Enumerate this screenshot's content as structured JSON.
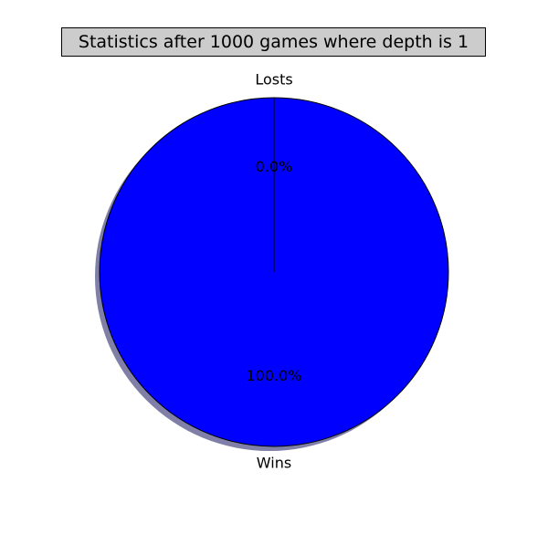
{
  "chart_data": {
    "type": "pie",
    "title": "Statistics after 1000 games where depth is 1",
    "slices": [
      {
        "label": "Wins",
        "value": 100.0,
        "pct_label": "100.0%",
        "color": "#0000ff"
      },
      {
        "label": "Losts",
        "value": 0.0,
        "pct_label": "0.0%",
        "color": "#ff0000"
      }
    ],
    "shadow": true,
    "shadow_color": "#7f7fa8",
    "start_angle_deg": 90,
    "edge_color": "#000000"
  }
}
